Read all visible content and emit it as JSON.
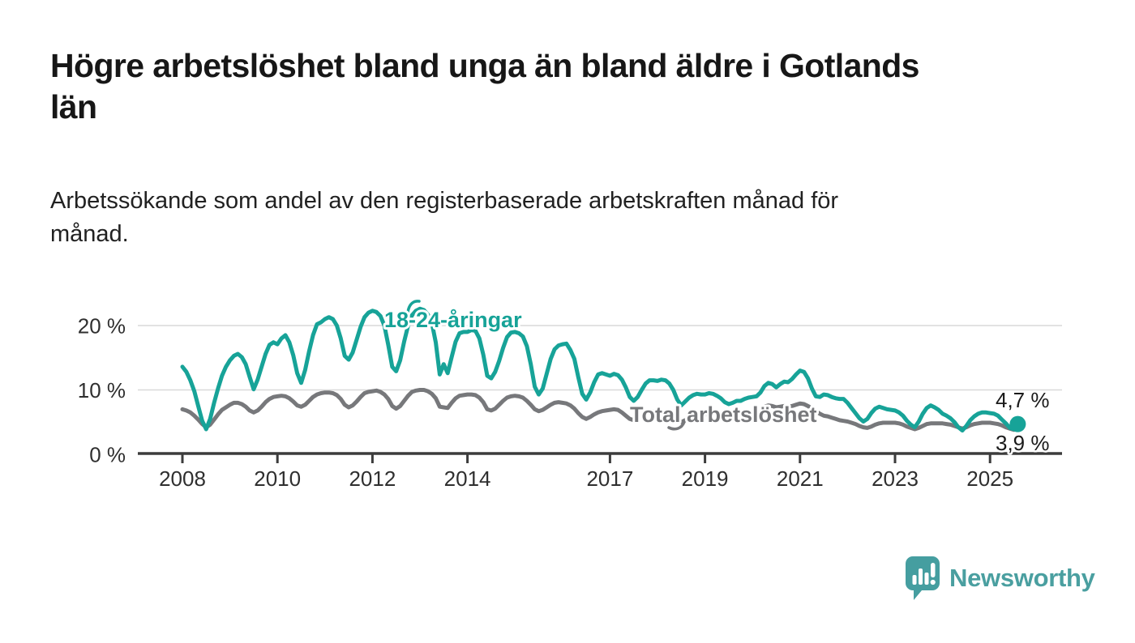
{
  "header": {
    "title_lines": [
      "Högre arbetslöshet bland unga än bland äldre i Gotlands",
      "län"
    ],
    "subtitle_lines": [
      "Arbetssökande som andel av den registerbaserade arbetskraften månad för",
      "månad."
    ]
  },
  "chart_data": {
    "type": "line",
    "title": "Högre arbetslöshet bland unga än bland äldre i Gotlands län",
    "subtitle": "Arbetssökande som andel av den registerbaserade arbetskraften månad för månad.",
    "x_unit": "month",
    "x_start": "2008-01",
    "x_end": "2025-08",
    "ylim": [
      0,
      23
    ],
    "grid": "horizontal-only",
    "legend_position": "inline-labels",
    "y_ticks": [
      {
        "value": 0,
        "label": "0 %"
      },
      {
        "value": 10,
        "label": "10 %"
      },
      {
        "value": 20,
        "label": "20 %"
      }
    ],
    "x_ticks": [
      {
        "year": 2008,
        "label": "2008"
      },
      {
        "year": 2010,
        "label": "2010"
      },
      {
        "year": 2012,
        "label": "2012"
      },
      {
        "year": 2014,
        "label": "2014"
      },
      {
        "year": 2017,
        "label": "2017"
      },
      {
        "year": 2019,
        "label": "2019"
      },
      {
        "year": 2021,
        "label": "2021"
      },
      {
        "year": 2023,
        "label": "2023"
      },
      {
        "year": 2025,
        "label": "2025"
      }
    ],
    "series": [
      {
        "name": "Total arbetslöshet",
        "color": "#77787b",
        "end_label": "3,9 %",
        "end_dot": false,
        "values": [
          7.0,
          6.8,
          6.5,
          6.0,
          5.4,
          4.7,
          4.2,
          4.6,
          5.4,
          6.2,
          6.9,
          7.3,
          7.7,
          8.0,
          8.0,
          7.8,
          7.4,
          6.8,
          6.5,
          6.8,
          7.4,
          8.1,
          8.6,
          8.9,
          9.0,
          9.1,
          9.0,
          8.7,
          8.2,
          7.6,
          7.4,
          7.7,
          8.3,
          8.9,
          9.3,
          9.5,
          9.6,
          9.6,
          9.5,
          9.2,
          8.6,
          7.7,
          7.3,
          7.6,
          8.2,
          8.9,
          9.5,
          9.7,
          9.8,
          9.9,
          9.7,
          9.3,
          8.6,
          7.5,
          7.1,
          7.5,
          8.3,
          9.1,
          9.7,
          9.9,
          10.0,
          10.0,
          9.8,
          9.4,
          8.7,
          7.4,
          7.3,
          7.2,
          8.0,
          8.7,
          9.1,
          9.2,
          9.3,
          9.3,
          9.2,
          8.8,
          8.1,
          7.0,
          6.8,
          7.1,
          7.7,
          8.3,
          8.8,
          9.0,
          9.1,
          9.0,
          8.8,
          8.3,
          7.7,
          7.0,
          6.7,
          6.9,
          7.3,
          7.7,
          8.0,
          8.1,
          8.0,
          7.9,
          7.6,
          7.1,
          6.4,
          5.8,
          5.5,
          5.8,
          6.2,
          6.5,
          6.7,
          6.8,
          6.9,
          7.0,
          6.9,
          6.5,
          6.0,
          5.5,
          5.3,
          5.6,
          6.0,
          6.4,
          6.6,
          6.7,
          6.7,
          6.7,
          6.5,
          6.2,
          5.7,
          5.2,
          5.0,
          5.3,
          5.6,
          5.9,
          6.1,
          6.2,
          6.3,
          6.3,
          6.2,
          5.9,
          5.6,
          5.3,
          5.2,
          5.4,
          5.6,
          5.8,
          5.9,
          6.0,
          6.1,
          6.2,
          6.8,
          7.4,
          7.6,
          7.5,
          7.3,
          7.4,
          7.5,
          7.4,
          7.5,
          7.7,
          7.9,
          7.8,
          7.5,
          7.1,
          6.7,
          6.3,
          6.0,
          5.9,
          5.7,
          5.5,
          5.3,
          5.2,
          5.1,
          4.9,
          4.7,
          4.4,
          4.2,
          4.1,
          4.3,
          4.6,
          4.8,
          4.9,
          4.9,
          4.9,
          4.9,
          4.8,
          4.6,
          4.3,
          4.1,
          3.9,
          4.1,
          4.4,
          4.7,
          4.8,
          4.8,
          4.8,
          4.8,
          4.7,
          4.6,
          4.4,
          4.2,
          4.0,
          4.2,
          4.5,
          4.7,
          4.8,
          4.9,
          4.9,
          4.9,
          4.8,
          4.7,
          4.5,
          4.2,
          4.0,
          3.8,
          3.9
        ]
      },
      {
        "name": "18-24-åringar",
        "color": "#17a398",
        "end_label": "4,7 %",
        "end_dot": true,
        "values": [
          13.6,
          12.8,
          11.5,
          9.8,
          7.5,
          5.2,
          3.9,
          5.5,
          8.0,
          10.2,
          12.2,
          13.6,
          14.6,
          15.3,
          15.6,
          15.1,
          14.0,
          12.0,
          10.1,
          11.6,
          13.6,
          15.6,
          17.0,
          17.4,
          17.1,
          18.0,
          18.5,
          17.4,
          15.4,
          12.6,
          11.1,
          13.1,
          16.0,
          18.5,
          20.2,
          20.5,
          21.0,
          21.3,
          21.0,
          20.0,
          18.0,
          15.3,
          14.7,
          15.8,
          17.8,
          19.8,
          21.3,
          22.0,
          22.3,
          22.1,
          21.5,
          20.0,
          17.0,
          13.6,
          12.9,
          14.6,
          17.5,
          20.0,
          21.6,
          22.3,
          22.6,
          22.4,
          21.7,
          20.4,
          17.4,
          12.4,
          14.0,
          12.6,
          15.1,
          17.5,
          18.8,
          19.0,
          19.0,
          19.3,
          19.2,
          18.0,
          15.5,
          12.2,
          11.8,
          12.8,
          14.5,
          16.5,
          18.2,
          18.9,
          19.0,
          18.8,
          18.3,
          16.8,
          14.0,
          10.5,
          9.3,
          10.2,
          12.5,
          14.8,
          16.3,
          16.9,
          17.1,
          17.2,
          16.2,
          14.8,
          12.0,
          9.4,
          8.5,
          9.6,
          11.2,
          12.4,
          12.6,
          12.4,
          12.2,
          12.5,
          12.3,
          11.6,
          10.4,
          8.9,
          8.3,
          8.9,
          10.0,
          11.0,
          11.5,
          11.5,
          11.4,
          11.6,
          11.5,
          11.0,
          10.0,
          8.5,
          7.6,
          8.2,
          8.8,
          9.2,
          9.4,
          9.3,
          9.3,
          9.5,
          9.4,
          9.1,
          8.7,
          8.1,
          7.8,
          8.0,
          8.3,
          8.3,
          8.6,
          8.8,
          8.9,
          9.0,
          9.6,
          10.6,
          11.1,
          10.9,
          10.4,
          10.9,
          11.3,
          11.2,
          11.7,
          12.4,
          13.0,
          12.8,
          11.8,
          10.2,
          9.0,
          8.9,
          9.3,
          9.2,
          8.9,
          8.7,
          8.6,
          8.6,
          8.0,
          7.2,
          6.4,
          5.6,
          5.1,
          5.5,
          6.4,
          7.1,
          7.4,
          7.2,
          7.0,
          6.9,
          6.8,
          6.5,
          6.0,
          5.2,
          4.6,
          4.2,
          5.1,
          6.3,
          7.2,
          7.6,
          7.3,
          6.9,
          6.3,
          6.0,
          5.6,
          5.0,
          4.2,
          3.7,
          4.4,
          5.3,
          5.9,
          6.3,
          6.5,
          6.5,
          6.4,
          6.3,
          6.0,
          5.4,
          4.8,
          4.1,
          3.9,
          4.7
        ]
      }
    ],
    "colors": {
      "grid": "#d9d9d9",
      "axis": "#3c3c3c",
      "tick_text": "#2f2f2f"
    }
  },
  "branding": {
    "logo_text": "Newsworthy",
    "logo_color": "#459ea0"
  }
}
